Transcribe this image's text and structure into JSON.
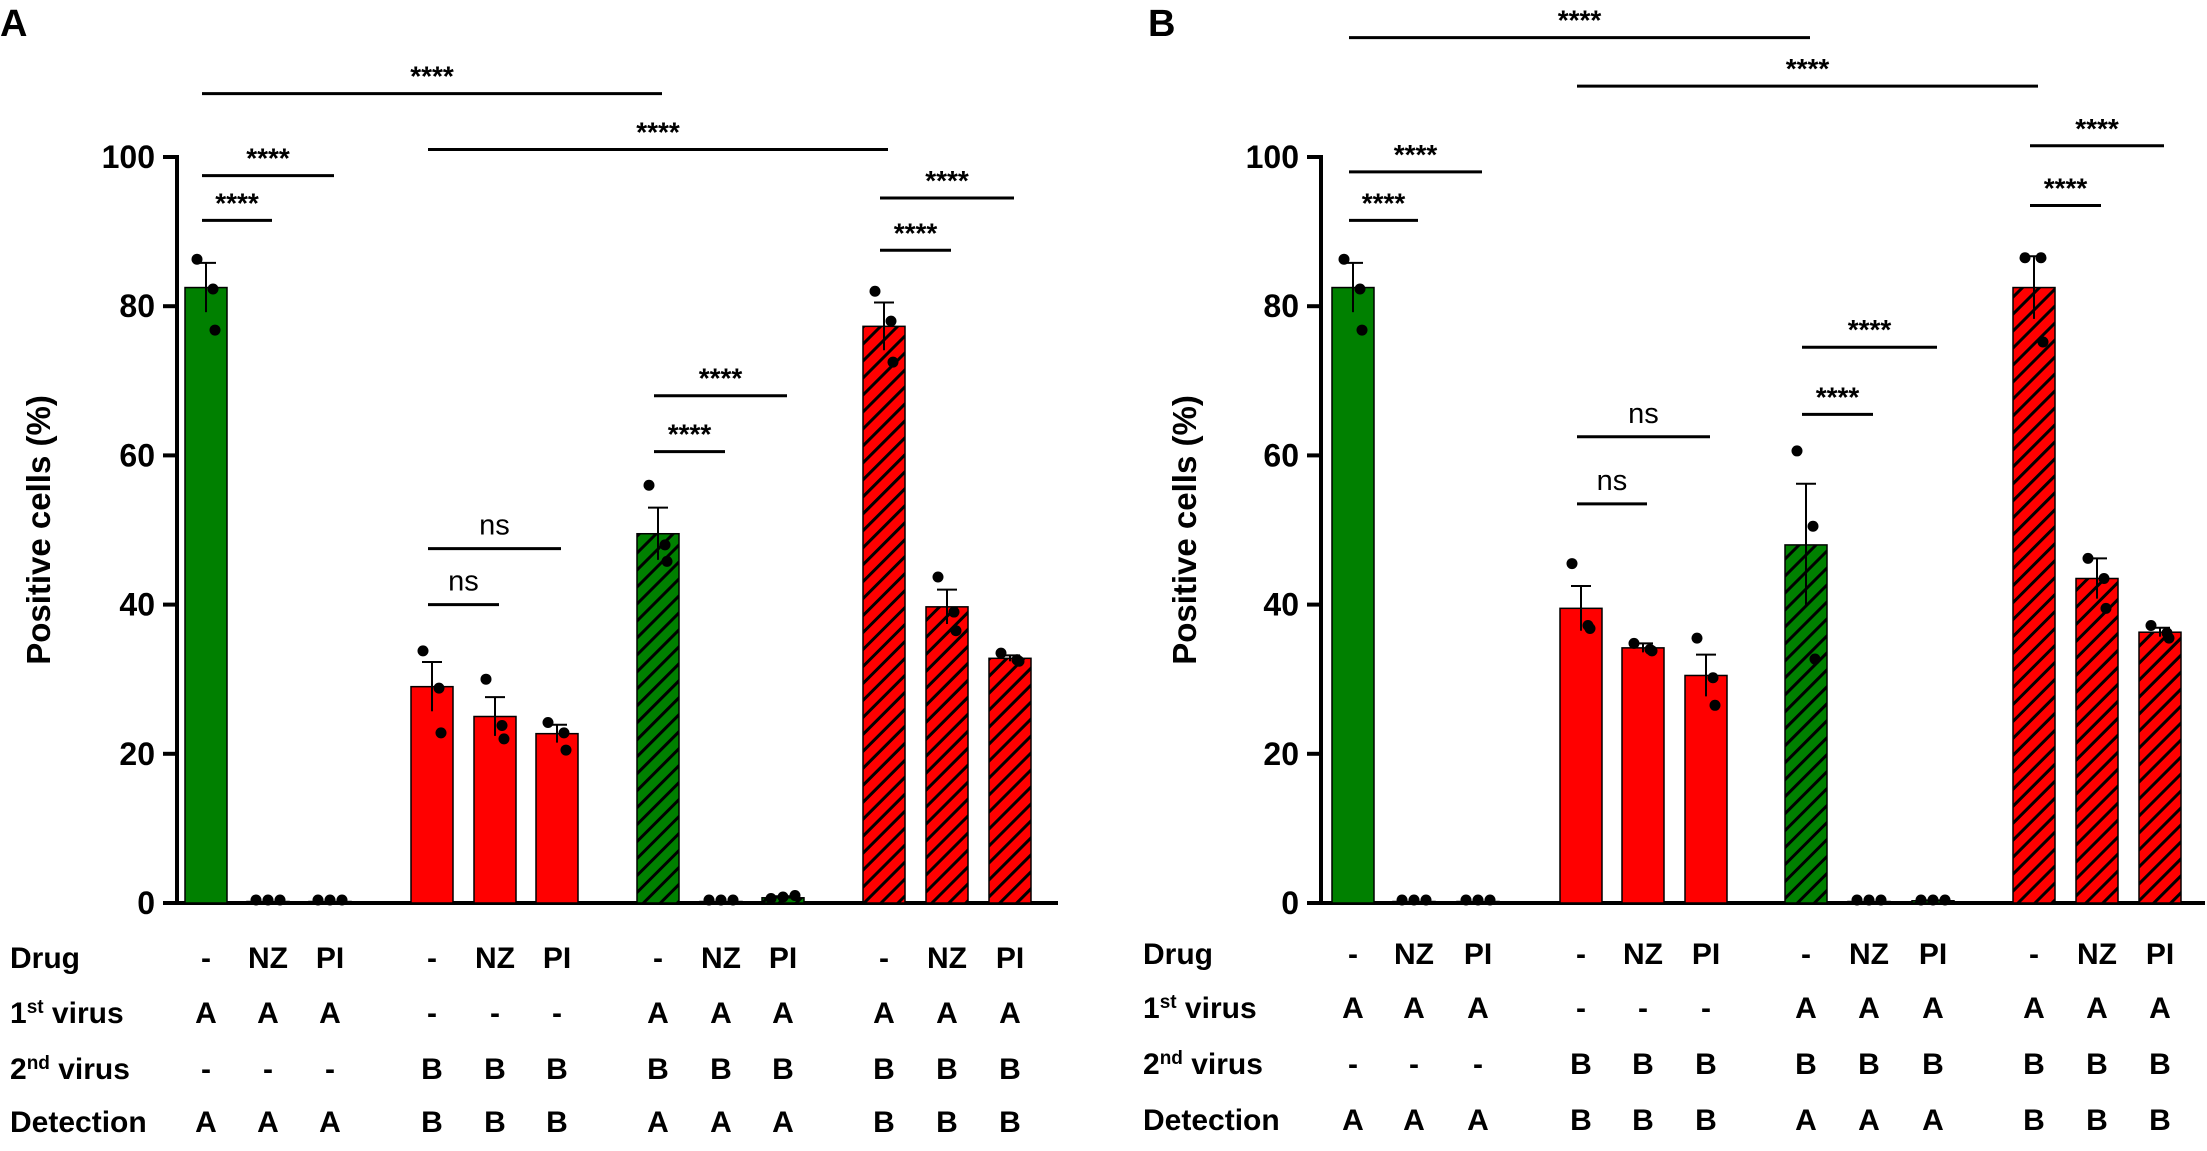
{
  "chart_data": [
    {
      "panel": "A",
      "type": "bar",
      "ylabel": "Positive cells (%)",
      "ylim": [
        0,
        100
      ],
      "yticks": [
        0,
        20,
        40,
        60,
        80,
        100
      ],
      "bars": [
        {
          "group": 0,
          "value": 82.5,
          "sem": 3.3,
          "color": "#008000",
          "hatched": false,
          "points": [
            86.3,
            82.3,
            76.8
          ]
        },
        {
          "group": 0,
          "value": 0.2,
          "sem": 0,
          "color": "#008000",
          "hatched": false,
          "points": [
            0.2,
            0.2,
            0.2
          ]
        },
        {
          "group": 0,
          "value": 0.2,
          "sem": 0,
          "color": "#008000",
          "hatched": false,
          "points": [
            0.2,
            0.2,
            0.2
          ]
        },
        {
          "group": 1,
          "value": 29.0,
          "sem": 3.3,
          "color": "#ff0000",
          "hatched": false,
          "points": [
            33.8,
            28.8,
            22.8
          ]
        },
        {
          "group": 1,
          "value": 25.0,
          "sem": 2.6,
          "color": "#ff0000",
          "hatched": false,
          "points": [
            30.0,
            23.8,
            22.0
          ]
        },
        {
          "group": 1,
          "value": 22.7,
          "sem": 1.2,
          "color": "#ff0000",
          "hatched": false,
          "points": [
            24.2,
            22.8,
            20.5
          ]
        },
        {
          "group": 2,
          "value": 49.5,
          "sem": 3.5,
          "color": "#008000",
          "hatched": true,
          "points": [
            56.0,
            48.0,
            45.8
          ]
        },
        {
          "group": 2,
          "value": 0.2,
          "sem": 0,
          "color": "#008000",
          "hatched": true,
          "points": [
            0.2,
            0.2,
            0.2
          ]
        },
        {
          "group": 2,
          "value": 0.7,
          "sem": 0.2,
          "color": "#008000",
          "hatched": true,
          "points": [
            0.6,
            0.8,
            1.0
          ]
        },
        {
          "group": 3,
          "value": 77.3,
          "sem": 3.2,
          "color": "#ff0000",
          "hatched": true,
          "points": [
            82.0,
            78.0,
            72.5
          ]
        },
        {
          "group": 3,
          "value": 39.7,
          "sem": 2.3,
          "color": "#ff0000",
          "hatched": true,
          "points": [
            43.7,
            39.0,
            36.5
          ]
        },
        {
          "group": 3,
          "value": 32.8,
          "sem": 0.4,
          "color": "#ff0000",
          "hatched": true,
          "points": [
            33.5,
            32.6,
            32.4
          ]
        }
      ],
      "significance": [
        {
          "from": 0,
          "to": 1,
          "y": 91.5,
          "label": "****"
        },
        {
          "from": 0,
          "to": 2,
          "y": 97.5,
          "label": "****"
        },
        {
          "from": 0,
          "to": 6,
          "y": 108.5,
          "label": "****"
        },
        {
          "from": 3,
          "to": 9,
          "y": 101.0,
          "label": "****"
        },
        {
          "from": 3,
          "to": 4,
          "y": 40.0,
          "label": "ns"
        },
        {
          "from": 3,
          "to": 5,
          "y": 47.5,
          "label": "ns"
        },
        {
          "from": 6,
          "to": 7,
          "y": 60.5,
          "label": "****"
        },
        {
          "from": 6,
          "to": 8,
          "y": 68.0,
          "label": "****"
        },
        {
          "from": 9,
          "to": 10,
          "y": 87.5,
          "label": "****"
        },
        {
          "from": 9,
          "to": 11,
          "y": 94.5,
          "label": "****"
        }
      ],
      "table": {
        "rows": [
          {
            "label": "Drug",
            "sup": "",
            "suffix": "",
            "cells": [
              "-",
              "NZ",
              "PI",
              "-",
              "NZ",
              "PI",
              "-",
              "NZ",
              "PI",
              "-",
              "NZ",
              "PI"
            ]
          },
          {
            "label": "1",
            "sup": "st",
            "suffix": " virus",
            "cells": [
              "A",
              "A",
              "A",
              "-",
              "-",
              "-",
              "A",
              "A",
              "A",
              "A",
              "A",
              "A"
            ]
          },
          {
            "label": "2",
            "sup": "nd",
            "suffix": " virus",
            "cells": [
              "-",
              "-",
              "-",
              "B",
              "B",
              "B",
              "B",
              "B",
              "B",
              "B",
              "B",
              "B"
            ]
          },
          {
            "label": "Detection",
            "sup": "",
            "suffix": "",
            "cells": [
              "A",
              "A",
              "A",
              "B",
              "B",
              "B",
              "A",
              "A",
              "A",
              "B",
              "B",
              "B"
            ]
          }
        ]
      }
    },
    {
      "panel": "B",
      "type": "bar",
      "ylabel": "Positive cells (%)",
      "ylim": [
        0,
        100
      ],
      "yticks": [
        0,
        20,
        40,
        60,
        80,
        100
      ],
      "bars": [
        {
          "group": 0,
          "value": 82.5,
          "sem": 3.3,
          "color": "#008000",
          "hatched": false,
          "points": [
            86.3,
            82.3,
            76.8
          ]
        },
        {
          "group": 0,
          "value": 0.2,
          "sem": 0,
          "color": "#008000",
          "hatched": false,
          "points": [
            0.2,
            0.2,
            0.2
          ]
        },
        {
          "group": 0,
          "value": 0.2,
          "sem": 0,
          "color": "#008000",
          "hatched": false,
          "points": [
            0.2,
            0.2,
            0.2
          ]
        },
        {
          "group": 1,
          "value": 39.5,
          "sem": 3.0,
          "color": "#ff0000",
          "hatched": false,
          "points": [
            45.5,
            37.2,
            36.8
          ]
        },
        {
          "group": 1,
          "value": 34.2,
          "sem": 0.6,
          "color": "#ff0000",
          "hatched": false,
          "points": [
            34.8,
            34.0,
            33.8
          ]
        },
        {
          "group": 1,
          "value": 30.5,
          "sem": 2.8,
          "color": "#ff0000",
          "hatched": false,
          "points": [
            35.5,
            30.2,
            26.5
          ]
        },
        {
          "group": 2,
          "value": 48.0,
          "sem": 8.2,
          "color": "#008000",
          "hatched": true,
          "points": [
            60.6,
            50.5,
            32.7
          ]
        },
        {
          "group": 2,
          "value": 0.2,
          "sem": 0,
          "color": "#008000",
          "hatched": true,
          "points": [
            0.2,
            0.2,
            0.2
          ]
        },
        {
          "group": 2,
          "value": 0.3,
          "sem": 0.05,
          "color": "#008000",
          "hatched": true,
          "points": [
            0.3,
            0.3,
            0.3
          ]
        },
        {
          "group": 3,
          "value": 82.5,
          "sem": 4.2,
          "color": "#ff0000",
          "hatched": true,
          "points": [
            86.5,
            86.5,
            75.2
          ]
        },
        {
          "group": 3,
          "value": 43.5,
          "sem": 2.7,
          "color": "#ff0000",
          "hatched": true,
          "points": [
            46.2,
            43.5,
            39.5
          ]
        },
        {
          "group": 3,
          "value": 36.3,
          "sem": 0.6,
          "color": "#ff0000",
          "hatched": true,
          "points": [
            37.2,
            36.2,
            35.5
          ]
        }
      ],
      "significance": [
        {
          "from": 0,
          "to": 1,
          "y": 91.5,
          "label": "****"
        },
        {
          "from": 0,
          "to": 2,
          "y": 98.0,
          "label": "****"
        },
        {
          "from": 0,
          "to": 6,
          "y": 116.0,
          "label": "****"
        },
        {
          "from": 3,
          "to": 9,
          "y": 109.5,
          "label": "****"
        },
        {
          "from": 3,
          "to": 4,
          "y": 53.5,
          "label": "ns"
        },
        {
          "from": 3,
          "to": 5,
          "y": 62.5,
          "label": "ns"
        },
        {
          "from": 6,
          "to": 7,
          "y": 65.5,
          "label": "****"
        },
        {
          "from": 6,
          "to": 8,
          "y": 74.5,
          "label": "****"
        },
        {
          "from": 9,
          "to": 10,
          "y": 93.5,
          "label": "****"
        },
        {
          "from": 9,
          "to": 11,
          "y": 101.5,
          "label": "****"
        }
      ],
      "table": {
        "rows": [
          {
            "label": "Drug",
            "sup": "",
            "suffix": "",
            "cells": [
              "-",
              "NZ",
              "PI",
              "-",
              "NZ",
              "PI",
              "-",
              "NZ",
              "PI",
              "-",
              "NZ",
              "PI"
            ]
          },
          {
            "label": "1",
            "sup": "st",
            "suffix": " virus",
            "cells": [
              "A",
              "A",
              "A",
              "-",
              "-",
              "-",
              "A",
              "A",
              "A",
              "A",
              "A",
              "A"
            ]
          },
          {
            "label": "2",
            "sup": "nd",
            "suffix": " virus",
            "cells": [
              "-",
              "-",
              "-",
              "B",
              "B",
              "B",
              "B",
              "B",
              "B",
              "B",
              "B",
              "B"
            ]
          },
          {
            "label": "Detection",
            "sup": "",
            "suffix": "",
            "cells": [
              "A",
              "A",
              "A",
              "B",
              "B",
              "B",
              "A",
              "A",
              "A",
              "B",
              "B",
              "B"
            ]
          }
        ]
      }
    }
  ]
}
